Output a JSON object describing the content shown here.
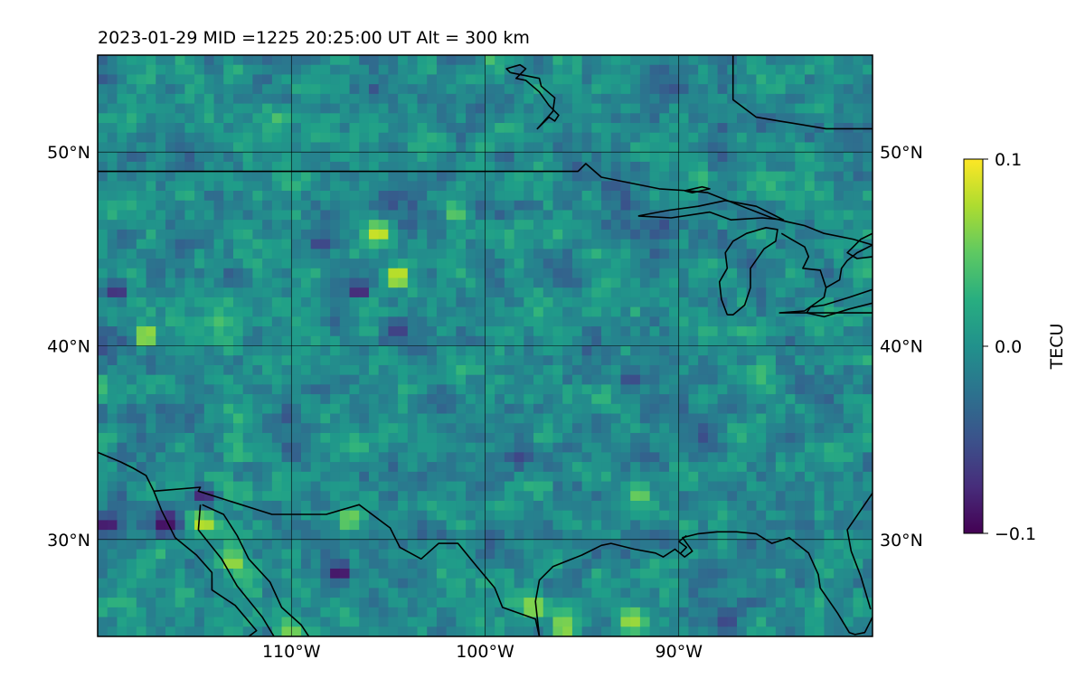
{
  "title": "2023-01-29  MID =1225    20:25:00  UT  Alt = 300 km",
  "map": {
    "lon_range": [
      -120,
      -80
    ],
    "lat_range": [
      25,
      55
    ],
    "gridlines": true,
    "lat_ticks": [
      {
        "value": 30,
        "label": "30°N"
      },
      {
        "value": 40,
        "label": "40°N"
      },
      {
        "value": 50,
        "label": "50°N"
      }
    ],
    "lon_ticks": [
      {
        "value": -110,
        "label": "110°W"
      },
      {
        "value": -100,
        "label": "100°W"
      },
      {
        "value": -90,
        "label": "90°W"
      }
    ],
    "field": {
      "name": "TEC perturbation",
      "colormap": "viridis",
      "vmin": -0.1,
      "vmax": 0.1,
      "cell_size_deg": 0.5,
      "background_level": -0.005,
      "random_seed": 1225,
      "hotspots": [
        {
          "lon": -105.5,
          "lat": 45.8,
          "value": 0.1
        },
        {
          "lon": -104.5,
          "lat": 43.6,
          "value": 0.1
        },
        {
          "lon": -106.5,
          "lat": 42.5,
          "value": 0.09
        },
        {
          "lon": -117.5,
          "lat": 40.5,
          "value": 0.1
        },
        {
          "lon": -114.5,
          "lat": 30.8,
          "value": 0.09
        },
        {
          "lon": -113.0,
          "lat": 28.8,
          "value": 0.08
        },
        {
          "lon": -97.5,
          "lat": 26.5,
          "value": 0.09
        },
        {
          "lon": -96.0,
          "lat": 25.5,
          "value": 0.08
        },
        {
          "lon": -92.5,
          "lat": 25.8,
          "value": 0.08
        },
        {
          "lon": -101.5,
          "lat": 46.8,
          "value": 0.06
        },
        {
          "lon": -92.0,
          "lat": 32.2,
          "value": 0.06
        },
        {
          "lon": -107.0,
          "lat": 31.0,
          "value": 0.07
        },
        {
          "lon": -110.0,
          "lat": 25.3,
          "value": 0.07
        }
      ],
      "coldspots": [
        {
          "lon": -119.5,
          "lat": 30.8,
          "value": -0.1
        },
        {
          "lon": -116.5,
          "lat": 30.8,
          "value": -0.1
        },
        {
          "lon": -114.5,
          "lat": 32.3,
          "value": -0.09
        },
        {
          "lon": -107.5,
          "lat": 28.3,
          "value": -0.1
        },
        {
          "lon": -106.5,
          "lat": 42.8,
          "value": -0.1
        },
        {
          "lon": -119.0,
          "lat": 42.8,
          "value": -0.08
        },
        {
          "lon": -104.5,
          "lat": 40.8,
          "value": -0.07
        },
        {
          "lon": -92.5,
          "lat": 38.3,
          "value": -0.06
        },
        {
          "lon": -87.5,
          "lat": 25.8,
          "value": -0.06
        },
        {
          "lon": -108.5,
          "lat": 45.3,
          "value": -0.07
        }
      ]
    },
    "coastlines": [
      {
        "id": "us-canada-border",
        "points": [
          [
            -120,
            49
          ],
          [
            -95.2,
            49
          ],
          [
            -94.8,
            49.4
          ],
          [
            -94,
            48.7
          ],
          [
            -91,
            48.1
          ],
          [
            -89.5,
            48
          ],
          [
            -88.5,
            47.9
          ],
          [
            -87,
            47.3
          ],
          [
            -85.2,
            46.6
          ],
          [
            -84.4,
            46.4
          ],
          [
            -83.5,
            46.2
          ],
          [
            -82.5,
            45.8
          ],
          [
            -81,
            45.5
          ],
          [
            -80,
            45.2
          ]
        ]
      },
      {
        "id": "lake-superior",
        "points": [
          [
            -92.1,
            46.7
          ],
          [
            -90.5,
            47
          ],
          [
            -89,
            47.2
          ],
          [
            -87.6,
            47.5
          ],
          [
            -86,
            47.2
          ],
          [
            -85,
            46.7
          ],
          [
            -84.6,
            46.5
          ],
          [
            -85.7,
            46.6
          ],
          [
            -87.3,
            46.5
          ],
          [
            -88.4,
            46.9
          ],
          [
            -90.4,
            46.6
          ],
          [
            -92.1,
            46.7
          ]
        ]
      },
      {
        "id": "isle-royale",
        "points": [
          [
            -89.7,
            48
          ],
          [
            -88.8,
            48.2
          ],
          [
            -88.4,
            48.1
          ],
          [
            -89.3,
            47.9
          ],
          [
            -89.7,
            48
          ]
        ]
      },
      {
        "id": "lake-michigan",
        "points": [
          [
            -87.5,
            41.6
          ],
          [
            -87.2,
            41.6
          ],
          [
            -86.6,
            42.1
          ],
          [
            -86.3,
            43
          ],
          [
            -86.3,
            44
          ],
          [
            -85.6,
            45
          ],
          [
            -85,
            45.4
          ],
          [
            -84.9,
            46
          ],
          [
            -85.5,
            46.1
          ],
          [
            -86.5,
            45.8
          ],
          [
            -87.2,
            45.4
          ],
          [
            -87.6,
            44.8
          ],
          [
            -87.5,
            44
          ],
          [
            -87.9,
            43.3
          ],
          [
            -87.8,
            42.4
          ],
          [
            -87.5,
            41.6
          ]
        ]
      },
      {
        "id": "michigan-lower-peninsula",
        "points": [
          [
            -84.7,
            45.8
          ],
          [
            -84.2,
            45.5
          ],
          [
            -83.5,
            45.1
          ],
          [
            -83.3,
            44.6
          ],
          [
            -83.6,
            44
          ],
          [
            -82.7,
            43.9
          ],
          [
            -82.4,
            43
          ],
          [
            -82.5,
            42.5
          ],
          [
            -83.5,
            41.8
          ],
          [
            -84.8,
            41.7
          ],
          [
            -80,
            41.7
          ]
        ]
      },
      {
        "id": "lake-huron-east",
        "points": [
          [
            -80,
            45.2
          ],
          [
            -80.8,
            44.8
          ],
          [
            -81.3,
            44.4
          ],
          [
            -81.6,
            44
          ],
          [
            -81.7,
            43.4
          ],
          [
            -82.4,
            43
          ]
        ]
      },
      {
        "id": "lake-erie",
        "points": [
          [
            -83.4,
            41.7
          ],
          [
            -82.5,
            41.5
          ],
          [
            -81.2,
            41.9
          ],
          [
            -80,
            42.2
          ],
          [
            -80,
            42.9
          ],
          [
            -81.2,
            42.5
          ],
          [
            -82.5,
            42.1
          ],
          [
            -83.2,
            42
          ],
          [
            -83.4,
            41.7
          ]
        ]
      },
      {
        "id": "georgian-bay",
        "points": [
          [
            -80,
            45.8
          ],
          [
            -80.6,
            45.5
          ],
          [
            -81,
            45.1
          ],
          [
            -81.3,
            44.8
          ],
          [
            -80.8,
            44.5
          ],
          [
            -80,
            44.6
          ]
        ]
      },
      {
        "id": "hudson-bay-coast",
        "points": [
          [
            -87.2,
            55
          ],
          [
            -87.2,
            52.7
          ],
          [
            -86,
            51.8
          ],
          [
            -84.8,
            51.6
          ],
          [
            -82.4,
            51.2
          ],
          [
            -80,
            51.2
          ]
        ]
      },
      {
        "id": "lake-winnipeg",
        "points": [
          [
            -98.7,
            54.1
          ],
          [
            -97.2,
            53.8
          ],
          [
            -97.1,
            53.4
          ],
          [
            -96.4,
            52.8
          ],
          [
            -96.5,
            52.1
          ],
          [
            -97.3,
            51.2
          ],
          [
            -96.7,
            51.8
          ],
          [
            -96.4,
            51.6
          ],
          [
            -96.2,
            51.9
          ],
          [
            -96.7,
            52.4
          ],
          [
            -97.2,
            53.1
          ],
          [
            -97.9,
            53.7
          ],
          [
            -98.4,
            53.8
          ],
          [
            -97.9,
            54.3
          ],
          [
            -98.2,
            54.5
          ],
          [
            -98.9,
            54.3
          ],
          [
            -98.7,
            54.1
          ]
        ]
      },
      {
        "id": "us-mexico-border",
        "points": [
          [
            -117.1,
            32.5
          ],
          [
            -114.7,
            32.7
          ],
          [
            -114.8,
            32.5
          ],
          [
            -111,
            31.3
          ],
          [
            -108.2,
            31.3
          ],
          [
            -106.5,
            31.8
          ],
          [
            -104.9,
            30.6
          ],
          [
            -104.4,
            29.6
          ],
          [
            -103.3,
            29
          ],
          [
            -102.4,
            29.8
          ],
          [
            -101.4,
            29.8
          ],
          [
            -100.5,
            28.7
          ],
          [
            -99.5,
            27.5
          ],
          [
            -99.1,
            26.5
          ],
          [
            -97.4,
            25.9
          ],
          [
            -97.2,
            25
          ]
        ]
      },
      {
        "id": "pacific-coast",
        "points": [
          [
            -120,
            34.5
          ],
          [
            -118.8,
            34.0
          ],
          [
            -118.2,
            33.7
          ],
          [
            -117.5,
            33.3
          ],
          [
            -117.1,
            32.5
          ],
          [
            -116.7,
            31.5
          ],
          [
            -116,
            30.1
          ],
          [
            -114.9,
            29.2
          ],
          [
            -114.1,
            28.3
          ],
          [
            -114.1,
            27.4
          ],
          [
            -112.9,
            26.6
          ],
          [
            -111.8,
            25.3
          ],
          [
            -112.2,
            25
          ]
        ]
      },
      {
        "id": "gulf-of-california-west",
        "points": [
          [
            -114.7,
            31.8
          ],
          [
            -114.8,
            30.5
          ],
          [
            -113.6,
            29
          ],
          [
            -112.8,
            27.6
          ],
          [
            -111.5,
            26
          ],
          [
            -110.9,
            25
          ]
        ]
      },
      {
        "id": "gulf-of-california-east",
        "points": [
          [
            -114.6,
            31.8
          ],
          [
            -113.5,
            31.3
          ],
          [
            -112.8,
            30.2
          ],
          [
            -112.2,
            29
          ],
          [
            -111.1,
            27.8
          ],
          [
            -110.5,
            26.5
          ],
          [
            -109.5,
            25.6
          ],
          [
            -109.1,
            25
          ]
        ]
      },
      {
        "id": "gulf-coast",
        "points": [
          [
            -97.2,
            25
          ],
          [
            -97.4,
            26.8
          ],
          [
            -97.2,
            27.9
          ],
          [
            -96.5,
            28.6
          ],
          [
            -95,
            29.2
          ],
          [
            -94,
            29.7
          ],
          [
            -93.5,
            29.8
          ],
          [
            -92.3,
            29.5
          ],
          [
            -91.2,
            29.3
          ],
          [
            -90.8,
            29.1
          ],
          [
            -90.2,
            29.5
          ],
          [
            -89.7,
            29.1
          ],
          [
            -89.3,
            29.4
          ],
          [
            -89.8,
            30.1
          ],
          [
            -89,
            30.3
          ],
          [
            -88,
            30.4
          ],
          [
            -87,
            30.4
          ],
          [
            -86,
            30.3
          ],
          [
            -85.2,
            29.8
          ],
          [
            -84.3,
            30.1
          ],
          [
            -83.3,
            29.3
          ],
          [
            -82.8,
            28.2
          ],
          [
            -82.7,
            27.5
          ],
          [
            -81.8,
            26.2
          ],
          [
            -81.2,
            25.2
          ],
          [
            -80.9,
            25.1
          ],
          [
            -80.4,
            25.2
          ],
          [
            -80,
            26
          ]
        ]
      },
      {
        "id": "florida-atlantic",
        "points": [
          [
            -80.1,
            26.4
          ],
          [
            -80.6,
            28.1
          ],
          [
            -81.1,
            29.4
          ],
          [
            -81.3,
            30.5
          ],
          [
            -80,
            32.4
          ]
        ]
      },
      {
        "id": "mississippi-delta",
        "points": [
          [
            -89.9,
            29.3
          ],
          [
            -89.6,
            29.6
          ],
          [
            -90,
            29.9
          ],
          [
            -89.6,
            30.2
          ]
        ]
      }
    ]
  },
  "colorbar": {
    "label": "TECU",
    "ticks": [
      {
        "value": 0.1,
        "label": "0.1"
      },
      {
        "value": 0.0,
        "label": "0.0"
      },
      {
        "value": -0.1,
        "label": "−0.1"
      }
    ]
  }
}
